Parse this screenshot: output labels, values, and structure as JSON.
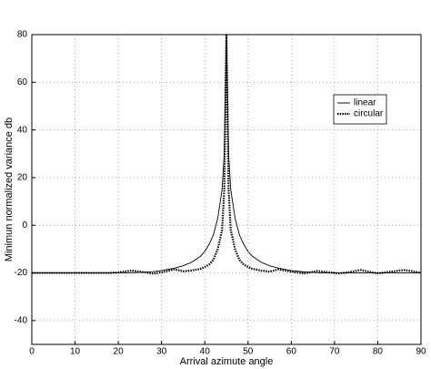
{
  "chart_data": {
    "type": "line",
    "xlabel": "Arrival azimute angle",
    "ylabel": "Minimun normalized variance db",
    "x": [
      0,
      5,
      10,
      15,
      18,
      20,
      23,
      25,
      28,
      30,
      33,
      35,
      37,
      39,
      40,
      41,
      42,
      43,
      44,
      44.5,
      45,
      45.5,
      46,
      47,
      48,
      49,
      50,
      51,
      53,
      55,
      57,
      60,
      63,
      66,
      68,
      71,
      73,
      76,
      80,
      83,
      86,
      88,
      90
    ],
    "series": [
      {
        "name": "linear",
        "color": "#000000",
        "linestyle": "solid",
        "values": [
          -20,
          -20,
          -20,
          -20,
          -20,
          -20,
          -19.9,
          -19.8,
          -19.5,
          -19,
          -18,
          -17,
          -15.5,
          -13,
          -11,
          -8,
          -4,
          3,
          15,
          30,
          80,
          30,
          15,
          3,
          -4,
          -8,
          -11,
          -13,
          -15.5,
          -17,
          -18,
          -19,
          -19.6,
          -19.9,
          -20,
          -20,
          -20,
          -20,
          -20,
          -20,
          -20,
          -20,
          -20
        ]
      },
      {
        "name": "circular",
        "color": "#000000",
        "linestyle": "dotted",
        "values": [
          -20,
          -20,
          -20,
          -20,
          -20,
          -19.8,
          -19,
          -19.5,
          -20.3,
          -19.8,
          -18.5,
          -19.3,
          -19,
          -18.3,
          -17.5,
          -16.5,
          -14.5,
          -10,
          -2,
          15,
          80,
          15,
          -2,
          -10,
          -14.5,
          -16.5,
          -17.5,
          -18.3,
          -19,
          -19.5,
          -18.5,
          -19.5,
          -20.2,
          -19.2,
          -19.6,
          -20.2,
          -19.8,
          -18.8,
          -20.2,
          -19.5,
          -18.8,
          -19.3,
          -20
        ]
      }
    ],
    "xlim": [
      0,
      90
    ],
    "xticks": [
      0,
      10,
      20,
      30,
      40,
      50,
      60,
      70,
      80,
      90
    ],
    "ylim": [
      -50,
      80
    ],
    "yticks": [
      -40,
      -20,
      0,
      20,
      40,
      60,
      80
    ],
    "grid": true,
    "legend": "upper right"
  }
}
